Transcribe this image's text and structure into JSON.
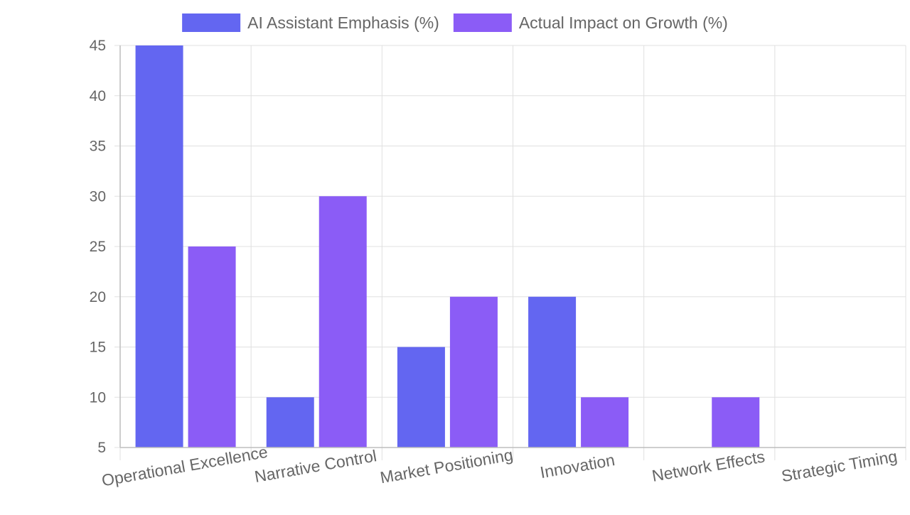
{
  "chart_data": {
    "type": "bar",
    "categories": [
      "Operational Excellence",
      "Narrative Control",
      "Market Positioning",
      "Innovation",
      "Network Effects",
      "Strategic Timing"
    ],
    "series": [
      {
        "name": "AI Assistant Emphasis (%)",
        "values": [
          45,
          10,
          15,
          20,
          5,
          5
        ],
        "color": "#6366f1"
      },
      {
        "name": "Actual Impact on Growth (%)",
        "values": [
          25,
          30,
          20,
          10,
          10,
          5
        ],
        "color": "#8b5cf6"
      }
    ],
    "ylim": [
      5,
      45
    ],
    "yticks": [
      5,
      10,
      15,
      20,
      25,
      30,
      35,
      40,
      45
    ],
    "grid": true,
    "legend_position": "top-center",
    "colors": {
      "grid": "#e0e0e0",
      "axis": "#bdbdbd",
      "tick_text": "#666666"
    }
  }
}
